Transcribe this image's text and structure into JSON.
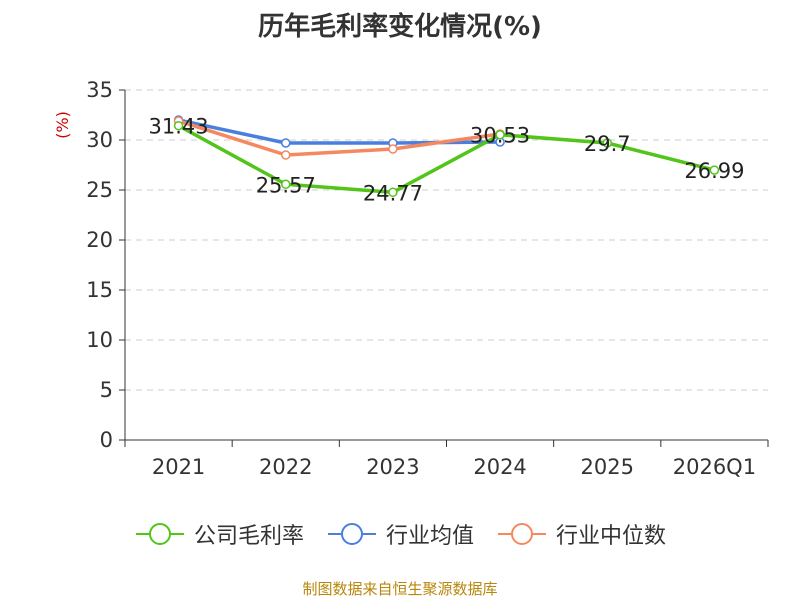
{
  "title": "历年毛利率变化情况(%)",
  "source": "制图数据来自恒生聚源数据库",
  "chart_data": {
    "type": "line",
    "title": "历年毛利率变化情况(%)",
    "xlabel": "",
    "ylabel": "(%)",
    "categories": [
      "2021",
      "2022",
      "2023",
      "2024",
      "2025",
      "2026Q1"
    ],
    "ylim": [
      0,
      35
    ],
    "yticks": [
      0,
      5,
      10,
      15,
      20,
      25,
      30,
      35
    ],
    "grid": "horizontal-dashed",
    "legend_position": "bottom",
    "series": [
      {
        "name": "公司毛利率",
        "color": "#52c41a",
        "values": [
          31.43,
          25.57,
          24.77,
          30.53,
          29.7,
          26.99
        ],
        "labels": [
          "31.43",
          "25.57",
          "24.77",
          "30.53",
          "29.7",
          "26.99"
        ]
      },
      {
        "name": "行业均值",
        "color": "#4a7fde",
        "values": [
          32.0,
          29.7,
          29.7,
          29.8,
          null,
          null
        ]
      },
      {
        "name": "行业中位数",
        "color": "#f4895f",
        "values": [
          31.9,
          28.5,
          29.1,
          30.6,
          null,
          null
        ]
      }
    ]
  }
}
